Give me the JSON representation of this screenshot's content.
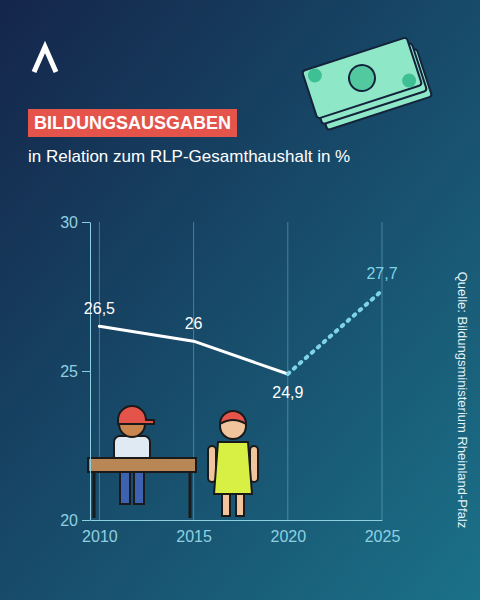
{
  "chart_data": {
    "type": "line",
    "title": "BILDUNGSAUSGABEN",
    "subtitle": "in Relation zum RLP-Gesamthaushalt in %",
    "source": "Quelle: Bildungsministerium Rheinland-Pfalz",
    "x": [
      2010,
      2015,
      2020,
      2025
    ],
    "series": [
      {
        "values": [
          26.5,
          26,
          24.9,
          null
        ],
        "value_labels": [
          "26,5",
          "26",
          "24,9",
          null
        ],
        "color": "#ffffff",
        "line_style": "solid"
      },
      {
        "values": [
          null,
          null,
          24.9,
          27.7
        ],
        "value_labels": [
          null,
          null,
          null,
          "27,7"
        ],
        "color": "#7fd3e6",
        "line_style": "dotted"
      }
    ],
    "xlim": [
      2009.5,
      2025
    ],
    "ylim": [
      20,
      30
    ],
    "xticks": [
      2010,
      2015,
      2020,
      2025
    ],
    "yticks": [
      20,
      25,
      30
    ],
    "grid": true,
    "data_labels": true
  }
}
